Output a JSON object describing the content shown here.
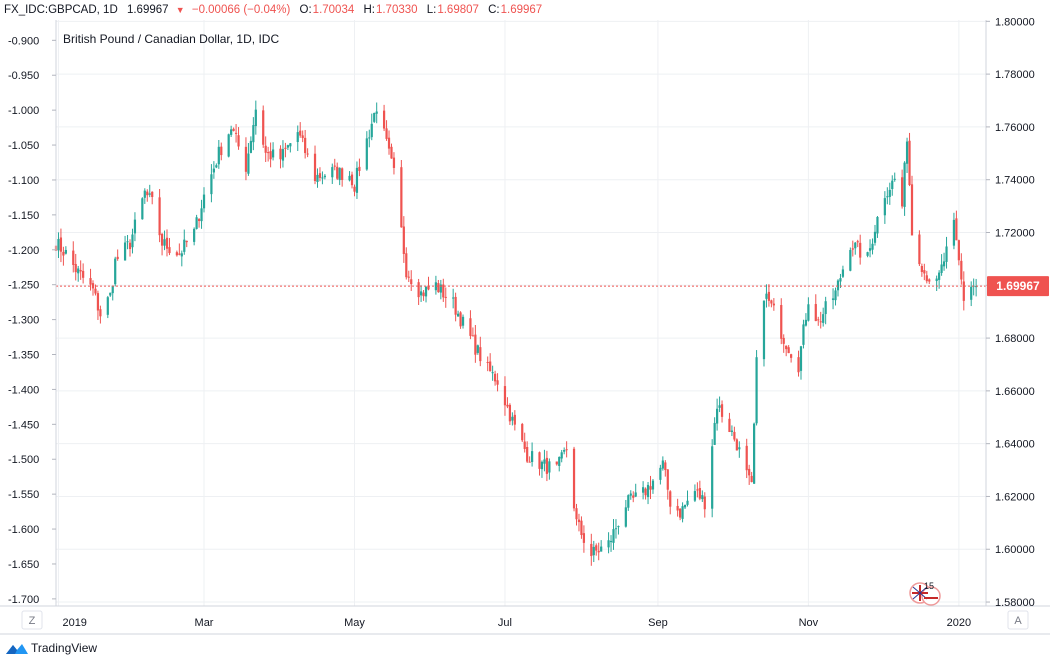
{
  "header": {
    "symbol": "FX_IDC:GBPCAD, 1D",
    "last": "1.69967",
    "arrow": "▼",
    "change": "−0.00066 (−0.04%)",
    "open_label": "O:",
    "open": "1.70034",
    "high_label": "H:",
    "high": "1.70330",
    "low_label": "L:",
    "low": "1.69807",
    "close_label": "C:",
    "close": "1.69967"
  },
  "colors": {
    "up": "#26a69a",
    "down": "#ef5350",
    "grid": "#eef0f3",
    "price_line": "#ef5350",
    "text": "#131722"
  },
  "footer": {
    "brand": "TradingView",
    "brand_icon": "tradingview-logo-icon"
  },
  "controls": {
    "left_button": "Z",
    "right_button": "A"
  },
  "event_badge": {
    "icon": "uk-flag-icon",
    "label": "15"
  },
  "chart_data": {
    "type": "candlestick",
    "title": "British Pound / Canadian Dollar, 1D, IDC",
    "right_axis": {
      "ticks": [
        "1.80000",
        "1.78000",
        "1.76000",
        "1.74000",
        "1.72000",
        "1.70000",
        "1.68000",
        "1.66000",
        "1.64000",
        "1.62000",
        "1.60000",
        "1.58000"
      ],
      "range": [
        1.5785,
        1.8005
      ]
    },
    "left_axis": {
      "ticks": [
        "-0.900",
        "-0.950",
        "-1.000",
        "-1.050",
        "-1.100",
        "-1.150",
        "-1.200",
        "-1.250",
        "-1.300",
        "-1.350",
        "-1.400",
        "-1.450",
        "-1.500",
        "-1.550",
        "-1.600",
        "-1.650",
        "-1.700"
      ],
      "range": [
        -1.7102,
        -0.8709
      ]
    },
    "x_axis": {
      "labels": [
        {
          "label": "2019",
          "date": "2019-01-01"
        },
        {
          "label": "Mar",
          "date": "2019-03-01"
        },
        {
          "label": "May",
          "date": "2019-05-01"
        },
        {
          "label": "Jul",
          "date": "2019-07-01"
        },
        {
          "label": "Sep",
          "date": "2019-09-01"
        },
        {
          "label": "Nov",
          "date": "2019-11-01"
        },
        {
          "label": "2020",
          "date": "2020-01-01"
        }
      ],
      "range": [
        "2018-12-31",
        "2020-01-12"
      ]
    },
    "last_price": {
      "value": 1.69967,
      "label": "1.69967"
    },
    "grid": true,
    "anchors": {
      "dates": [
        "2018-12-31",
        "2019-01-04",
        "2019-01-08",
        "2019-01-15",
        "2019-01-18",
        "2019-01-22",
        "2019-01-24",
        "2019-01-30",
        "2019-02-05",
        "2019-02-08",
        "2019-02-12",
        "2019-02-19",
        "2019-02-25",
        "2019-03-01",
        "2019-03-07",
        "2019-03-12",
        "2019-03-18",
        "2019-03-22",
        "2019-03-26",
        "2019-04-01",
        "2019-04-08",
        "2019-04-15",
        "2019-04-22",
        "2019-04-29",
        "2019-05-01",
        "2019-05-03",
        "2019-05-10",
        "2019-05-17",
        "2019-05-22",
        "2019-05-28",
        "2019-06-03",
        "2019-06-10",
        "2019-06-17",
        "2019-06-24",
        "2019-06-28",
        "2019-07-05",
        "2019-07-10",
        "2019-07-16",
        "2019-07-22",
        "2019-07-26",
        "2019-07-30",
        "2019-08-05",
        "2019-08-12",
        "2019-08-19",
        "2019-08-26",
        "2019-08-30",
        "2019-09-03",
        "2019-09-06",
        "2019-09-10",
        "2019-09-16",
        "2019-09-20",
        "2019-09-25",
        "2019-09-30",
        "2019-10-03",
        "2019-10-07",
        "2019-10-09",
        "2019-10-11",
        "2019-10-14",
        "2019-10-18",
        "2019-10-22",
        "2019-10-28",
        "2019-11-01",
        "2019-11-05",
        "2019-11-08",
        "2019-11-12",
        "2019-11-18",
        "2019-11-25",
        "2019-11-28",
        "2019-12-02",
        "2019-12-06",
        "2019-12-09",
        "2019-12-11",
        "2019-12-13",
        "2019-12-18",
        "2019-12-23",
        "2019-12-30",
        "2020-01-03",
        "2020-01-06",
        "2020-01-08"
      ],
      "closes": [
        1.716,
        1.712,
        1.706,
        1.698,
        1.689,
        1.696,
        1.709,
        1.716,
        1.735,
        1.731,
        1.716,
        1.712,
        1.72,
        1.734,
        1.75,
        1.76,
        1.745,
        1.767,
        1.75,
        1.748,
        1.758,
        1.741,
        1.743,
        1.742,
        1.738,
        1.745,
        1.768,
        1.742,
        1.706,
        1.697,
        1.7,
        1.693,
        1.68,
        1.668,
        1.664,
        1.646,
        1.636,
        1.632,
        1.63,
        1.638,
        1.61,
        1.598,
        1.602,
        1.617,
        1.621,
        1.626,
        1.632,
        1.618,
        1.614,
        1.622,
        1.618,
        1.655,
        1.646,
        1.64,
        1.628,
        1.623,
        1.67,
        1.697,
        1.69,
        1.68,
        1.67,
        1.695,
        1.686,
        1.691,
        1.697,
        1.716,
        1.71,
        1.722,
        1.735,
        1.74,
        1.73,
        1.757,
        1.72,
        1.705,
        1.7,
        1.722,
        1.695,
        1.7,
        1.6997
      ]
    }
  }
}
